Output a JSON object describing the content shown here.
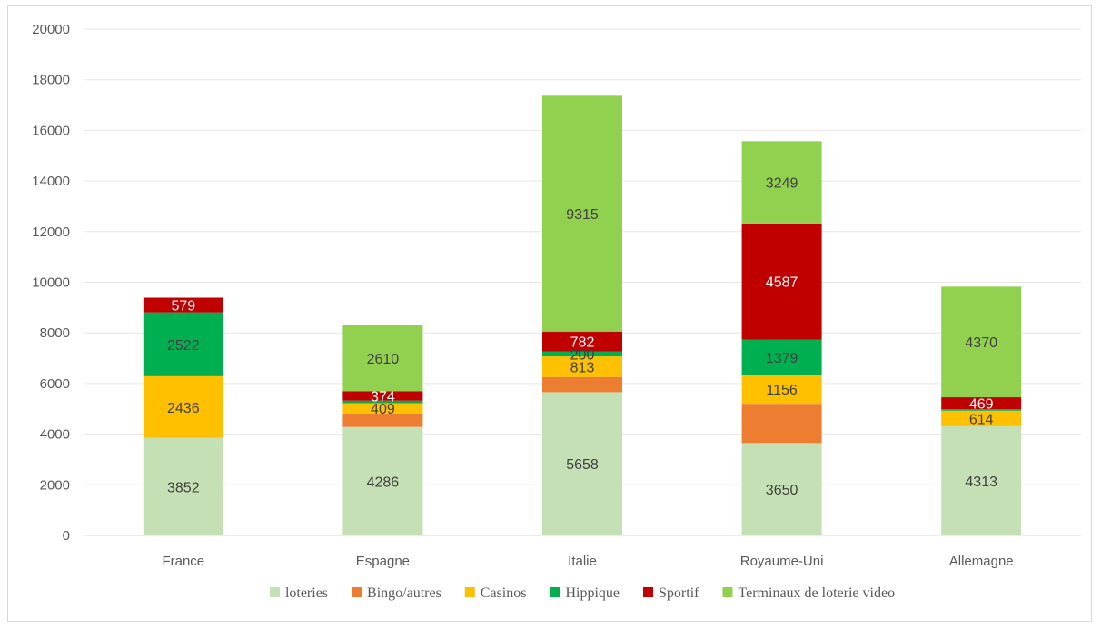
{
  "chart_data": {
    "type": "bar",
    "stacked": true,
    "title": "",
    "xlabel": "",
    "ylabel": "",
    "ylim": [
      0,
      20000
    ],
    "yticks": [
      0,
      2000,
      4000,
      6000,
      8000,
      10000,
      12000,
      14000,
      16000,
      18000,
      20000
    ],
    "grid": true,
    "legend_position": "bottom",
    "categories": [
      "France",
      "Espagne",
      "Italie",
      "Royaume-Uni",
      "Allemagne"
    ],
    "series": [
      {
        "name": "loteries",
        "color": "#c5e0b4",
        "values": [
          3852,
          4286,
          5658,
          3650,
          4313
        ],
        "labels": [
          "3852",
          "4286",
          "5658",
          "3650",
          "4313"
        ]
      },
      {
        "name": "Bingo/autres",
        "color": "#ed7d31",
        "values": [
          0,
          530,
          600,
          1550,
          0
        ],
        "labels": [
          "",
          "",
          "",
          "",
          ""
        ]
      },
      {
        "name": "Casinos",
        "color": "#ffc000",
        "values": [
          2436,
          409,
          813,
          1156,
          614
        ],
        "labels": [
          "2436",
          "409",
          "813",
          "1156",
          "614"
        ]
      },
      {
        "name": "Hippique",
        "color": "#00b050",
        "values": [
          2522,
          100,
          200,
          1379,
          60
        ],
        "labels": [
          "2522",
          "",
          "200",
          "1379",
          ""
        ]
      },
      {
        "name": "Sportif",
        "color": "#c00000",
        "values": [
          579,
          374,
          782,
          4587,
          469
        ],
        "labels": [
          "579",
          "374",
          "782",
          "4587",
          "469"
        ]
      },
      {
        "name": "Terminaux de loterie video",
        "color": "#92d050",
        "values": [
          0,
          2610,
          9315,
          3249,
          4370
        ],
        "labels": [
          "",
          "2610",
          "9315",
          "3249",
          "4370"
        ]
      }
    ],
    "label_colors": {
      "loteries": "#404040",
      "Bingo/autres": "#404040",
      "Casinos": "#404040",
      "Hippique": "#404040",
      "Sportif": "#ffffff",
      "Terminaux de loterie video": "#404040"
    }
  }
}
